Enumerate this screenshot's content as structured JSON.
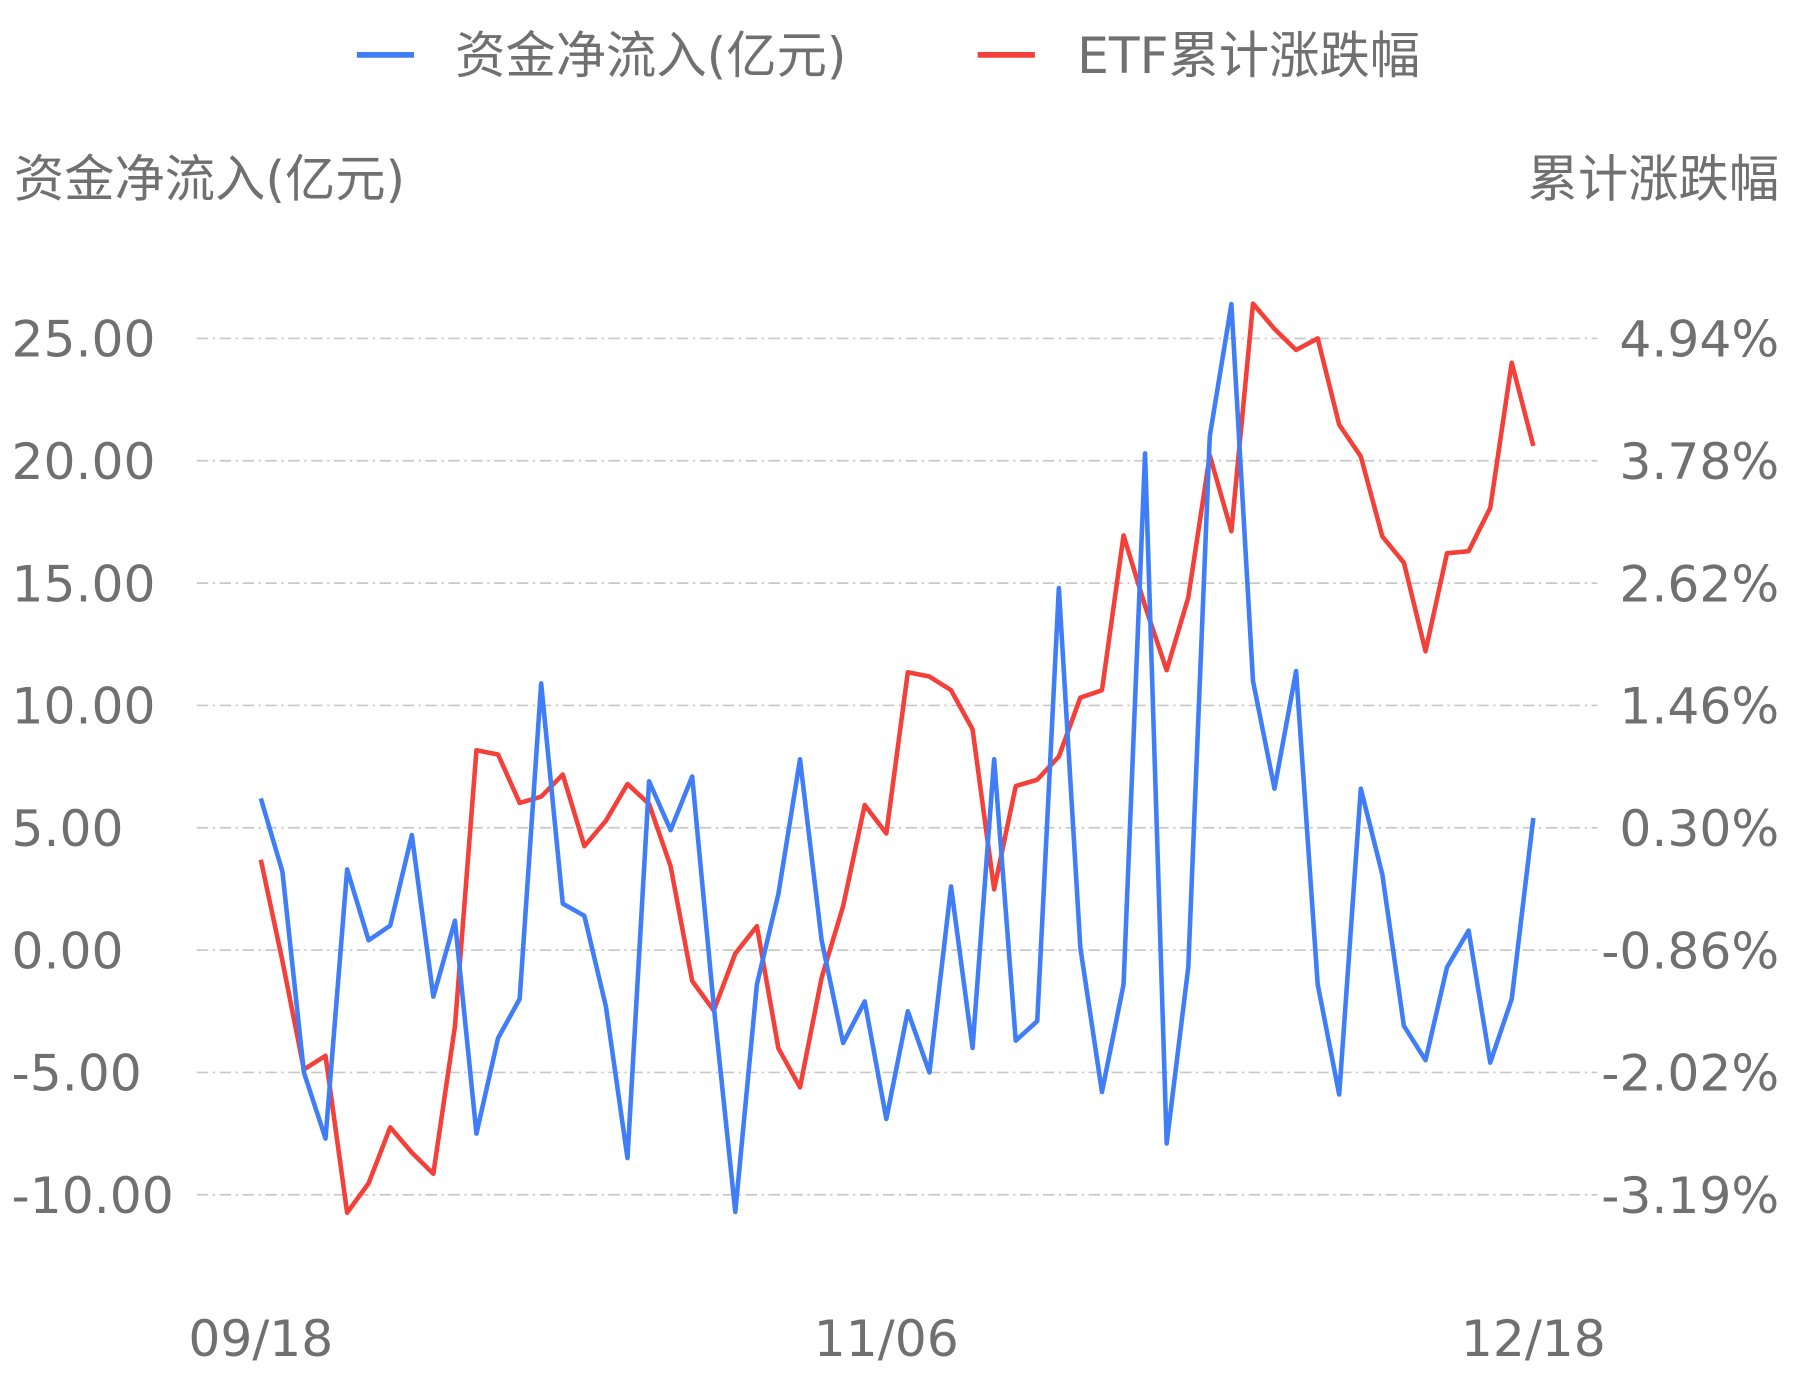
{
  "chart_data": {
    "type": "line",
    "title": "",
    "legend": {
      "position": "top-center",
      "entries": [
        "资金净流入(亿元)",
        "ETF累计涨跌幅"
      ]
    },
    "left_axis": {
      "label": "资金净流入(亿元)",
      "ticks": [
        "25.00",
        "20.00",
        "15.00",
        "10.00",
        "5.00",
        "0.00",
        "-5.00",
        "-10.00"
      ],
      "range": [
        -10,
        25
      ]
    },
    "right_axis": {
      "label": "累计涨跌幅",
      "ticks": [
        "4.94%",
        "3.78%",
        "2.62%",
        "1.46%",
        "0.30%",
        "-0.86%",
        "-2.02%",
        "-3.19%"
      ],
      "range": [
        -3.19,
        4.94
      ]
    },
    "x_tick_labels": [
      {
        "index": 0,
        "label": "09/18"
      },
      {
        "index": 29,
        "label": "11/06"
      },
      {
        "index": 59,
        "label": "12/18"
      }
    ],
    "grid": true,
    "series": [
      {
        "name": "资金净流入(亿元)",
        "axis": "left",
        "color": "#3f7ef8",
        "values": [
          6.2,
          3.2,
          -5.0,
          -7.7,
          3.3,
          0.4,
          1.0,
          4.7,
          -1.9,
          1.2,
          -7.5,
          -3.6,
          -2.0,
          10.9,
          1.9,
          1.4,
          -2.3,
          -8.5,
          6.9,
          4.9,
          7.1,
          -2.3,
          -10.7,
          -1.4,
          2.3,
          7.8,
          0.4,
          -3.8,
          -2.1,
          -6.9,
          -2.5,
          -5.0,
          2.6,
          -4.0,
          7.8,
          -3.7,
          -2.9,
          14.8,
          0.1,
          -5.8,
          -1.4,
          20.3,
          -7.9,
          -0.7,
          21.0,
          26.4,
          11.0,
          6.6,
          11.4,
          -1.4,
          -5.9,
          6.6,
          3.1,
          -3.1,
          -4.5,
          -0.7,
          0.8,
          -4.6,
          -2.0,
          5.4
        ]
      },
      {
        "name": "ETF累计涨跌幅",
        "axis": "right",
        "color": "#f5403a",
        "values": [
          -0.01,
          -0.97,
          -2.0,
          -1.87,
          -3.36,
          -3.08,
          -2.55,
          -2.79,
          -2.99,
          -1.59,
          1.03,
          0.99,
          0.53,
          0.59,
          0.8,
          0.12,
          0.36,
          0.71,
          0.52,
          -0.07,
          -1.16,
          -1.44,
          -0.9,
          -0.64,
          -1.8,
          -2.17,
          -1.13,
          -0.45,
          0.51,
          0.24,
          1.77,
          1.73,
          1.6,
          1.23,
          -0.29,
          0.69,
          0.75,
          0.97,
          1.53,
          1.6,
          3.07,
          2.4,
          1.79,
          2.48,
          3.83,
          3.11,
          5.27,
          5.03,
          4.83,
          4.94,
          4.12,
          3.82,
          3.06,
          2.81,
          1.97,
          2.9,
          2.92,
          3.33,
          4.71,
          3.92
        ]
      }
    ]
  }
}
